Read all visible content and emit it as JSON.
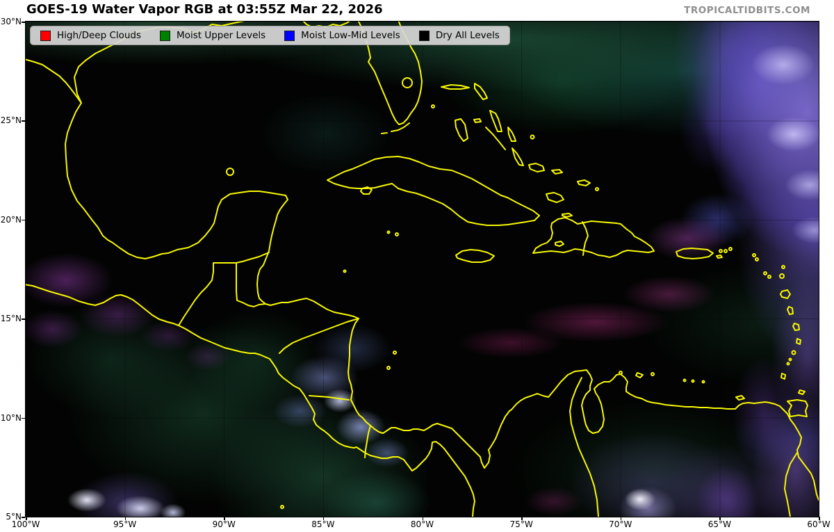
{
  "header": {
    "title": "GOES-19 Water Vapor RGB at 03:55Z Mar 22, 2026",
    "watermark": "TROPICALTIDBITS.COM"
  },
  "legend": {
    "items": [
      {
        "label": "High/Deep Clouds",
        "color": "#ff0000"
      },
      {
        "label": "Moist Upper Levels",
        "color": "#008000"
      },
      {
        "label": "Moist Low-Mid Levels",
        "color": "#0000ff"
      },
      {
        "label": "Dry All Levels",
        "color": "#000000"
      }
    ]
  },
  "axes": {
    "lat_ticks": [
      "30°N",
      "25°N",
      "20°N",
      "15°N",
      "10°N",
      "5°N"
    ],
    "lon_ticks": [
      "100°W",
      "95°W",
      "90°W",
      "85°W",
      "80°W",
      "75°W",
      "70°W",
      "65°W",
      "60°W"
    ]
  },
  "map": {
    "coastline_color": "#f8f800",
    "background_color": "#020302",
    "grid_line_color": "#000000"
  }
}
